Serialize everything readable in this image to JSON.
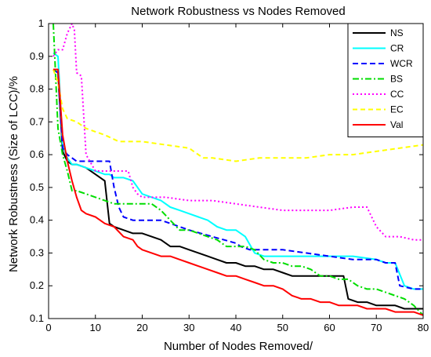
{
  "chart_data": {
    "type": "line",
    "title": "Network Robustness vs Nodes Removed",
    "xlabel": "Number of Nodes Removed/",
    "ylabel": "Network Robustness (Size of LCC)/%",
    "xlim": [
      0,
      80
    ],
    "ylim": [
      0.1,
      1
    ],
    "x_ticks": [
      0,
      10,
      20,
      30,
      40,
      50,
      60,
      70,
      80
    ],
    "y_ticks": [
      0.1,
      0.2,
      0.3,
      0.4,
      0.5,
      0.6,
      0.7,
      0.8,
      0.9,
      1
    ],
    "x_tick_labels": [
      "0",
      "10",
      "20",
      "30",
      "40",
      "50",
      "60",
      "70",
      "80"
    ],
    "y_tick_labels": [
      "0.1",
      "0.2",
      "0.3",
      "0.4",
      "0.5",
      "0.6",
      "0.7",
      "0.8",
      "0.9",
      "1"
    ],
    "grid": false,
    "legend_position": "top-right",
    "series": [
      {
        "name": "NS",
        "color": "#000000",
        "dash": "solid",
        "x": [
          1,
          2,
          3,
          4,
          5,
          6,
          8,
          10,
          12,
          13,
          14,
          16,
          18,
          20,
          22,
          24,
          26,
          28,
          30,
          32,
          34,
          36,
          38,
          40,
          42,
          44,
          46,
          48,
          50,
          52,
          54,
          56,
          58,
          60,
          62,
          63,
          64,
          66,
          68,
          70,
          72,
          74,
          76,
          78,
          80
        ],
        "y": [
          0.86,
          0.85,
          0.61,
          0.58,
          0.57,
          0.57,
          0.56,
          0.54,
          0.52,
          0.39,
          0.38,
          0.37,
          0.36,
          0.36,
          0.35,
          0.34,
          0.32,
          0.32,
          0.31,
          0.3,
          0.29,
          0.28,
          0.27,
          0.27,
          0.26,
          0.26,
          0.25,
          0.25,
          0.24,
          0.23,
          0.23,
          0.23,
          0.23,
          0.23,
          0.23,
          0.23,
          0.16,
          0.15,
          0.15,
          0.14,
          0.14,
          0.14,
          0.13,
          0.13,
          0.13
        ]
      },
      {
        "name": "CR",
        "color": "#00ffff",
        "dash": "solid",
        "x": [
          1,
          2,
          3,
          4,
          5,
          6,
          8,
          10,
          12,
          13,
          14,
          16,
          18,
          20,
          22,
          24,
          26,
          28,
          30,
          32,
          34,
          36,
          38,
          40,
          42,
          44,
          46,
          48,
          50,
          55,
          60,
          65,
          70,
          72,
          74,
          76,
          78,
          80
        ],
        "y": [
          0.91,
          0.9,
          0.63,
          0.59,
          0.57,
          0.57,
          0.56,
          0.55,
          0.54,
          0.54,
          0.53,
          0.53,
          0.52,
          0.48,
          0.47,
          0.46,
          0.44,
          0.43,
          0.42,
          0.41,
          0.4,
          0.38,
          0.37,
          0.37,
          0.35,
          0.3,
          0.29,
          0.29,
          0.29,
          0.29,
          0.29,
          0.29,
          0.28,
          0.27,
          0.27,
          0.2,
          0.19,
          0.19
        ]
      },
      {
        "name": "WCR",
        "color": "#0000ff",
        "dash": "7,4",
        "x": [
          1,
          2,
          3,
          4,
          6,
          8,
          10,
          12,
          13,
          14,
          15,
          16,
          18,
          20,
          22,
          24,
          26,
          28,
          30,
          35,
          40,
          41,
          43,
          45,
          50,
          55,
          60,
          65,
          70,
          72,
          74,
          75,
          78,
          80
        ],
        "y": [
          0.86,
          0.85,
          0.62,
          0.6,
          0.58,
          0.58,
          0.58,
          0.58,
          0.58,
          0.5,
          0.44,
          0.41,
          0.4,
          0.4,
          0.4,
          0.4,
          0.39,
          0.38,
          0.37,
          0.35,
          0.33,
          0.32,
          0.31,
          0.31,
          0.31,
          0.3,
          0.29,
          0.28,
          0.28,
          0.27,
          0.27,
          0.2,
          0.19,
          0.19
        ]
      },
      {
        "name": "BS",
        "color": "#00dd00",
        "dash": "8,3,2,3",
        "x": [
          1,
          2,
          3,
          4,
          5,
          6,
          8,
          10,
          12,
          14,
          16,
          18,
          20,
          22,
          24,
          26,
          28,
          30,
          32,
          34,
          36,
          38,
          40,
          42,
          44,
          46,
          48,
          50,
          52,
          54,
          56,
          58,
          60,
          62,
          64,
          66,
          68,
          70,
          72,
          74,
          76,
          78,
          80
        ],
        "y": [
          1.0,
          0.68,
          0.6,
          0.55,
          0.49,
          0.49,
          0.48,
          0.47,
          0.46,
          0.45,
          0.45,
          0.45,
          0.45,
          0.45,
          0.43,
          0.4,
          0.37,
          0.37,
          0.36,
          0.35,
          0.34,
          0.32,
          0.32,
          0.32,
          0.31,
          0.28,
          0.27,
          0.27,
          0.26,
          0.26,
          0.25,
          0.23,
          0.23,
          0.22,
          0.22,
          0.2,
          0.19,
          0.19,
          0.18,
          0.17,
          0.16,
          0.14,
          0.11
        ]
      },
      {
        "name": "CC",
        "color": "#ff00ff",
        "dash": "2,3",
        "x": [
          1,
          2,
          3,
          4,
          5,
          5.5,
          6,
          7,
          8,
          10,
          12,
          15,
          17,
          18,
          19,
          20,
          25,
          30,
          35,
          40,
          45,
          50,
          55,
          60,
          65,
          68,
          70,
          72,
          75,
          78,
          80
        ],
        "y": [
          0.9,
          0.92,
          0.92,
          0.97,
          1.0,
          0.98,
          0.85,
          0.84,
          0.6,
          0.55,
          0.55,
          0.55,
          0.55,
          0.5,
          0.48,
          0.47,
          0.47,
          0.46,
          0.46,
          0.45,
          0.44,
          0.43,
          0.43,
          0.43,
          0.44,
          0.44,
          0.38,
          0.35,
          0.35,
          0.34,
          0.34
        ]
      },
      {
        "name": "EC",
        "color": "#ffff00",
        "dash": "6,4",
        "x": [
          1,
          2,
          3,
          4,
          6,
          8,
          10,
          12,
          15,
          18,
          20,
          25,
          30,
          33,
          35,
          40,
          45,
          50,
          55,
          60,
          65,
          70,
          75,
          80
        ],
        "y": [
          0.86,
          0.82,
          0.74,
          0.71,
          0.7,
          0.68,
          0.67,
          0.66,
          0.64,
          0.64,
          0.64,
          0.63,
          0.62,
          0.59,
          0.59,
          0.58,
          0.59,
          0.59,
          0.59,
          0.6,
          0.6,
          0.61,
          0.62,
          0.63
        ]
      },
      {
        "name": "Val",
        "color": "#ff0000",
        "dash": "solid",
        "x": [
          1,
          2,
          3,
          4,
          5,
          6,
          7,
          8,
          10,
          12,
          14,
          16,
          18,
          19,
          20,
          22,
          24,
          26,
          28,
          30,
          32,
          34,
          36,
          38,
          40,
          42,
          44,
          46,
          48,
          50,
          52,
          54,
          56,
          58,
          60,
          62,
          64,
          66,
          68,
          70,
          72,
          74,
          76,
          78,
          80
        ],
        "y": [
          0.86,
          0.86,
          0.66,
          0.58,
          0.52,
          0.47,
          0.43,
          0.42,
          0.41,
          0.39,
          0.38,
          0.35,
          0.34,
          0.32,
          0.31,
          0.3,
          0.29,
          0.29,
          0.28,
          0.27,
          0.26,
          0.25,
          0.24,
          0.23,
          0.23,
          0.22,
          0.21,
          0.2,
          0.2,
          0.19,
          0.17,
          0.16,
          0.16,
          0.15,
          0.15,
          0.14,
          0.14,
          0.14,
          0.13,
          0.13,
          0.13,
          0.12,
          0.12,
          0.12,
          0.11
        ]
      }
    ]
  }
}
